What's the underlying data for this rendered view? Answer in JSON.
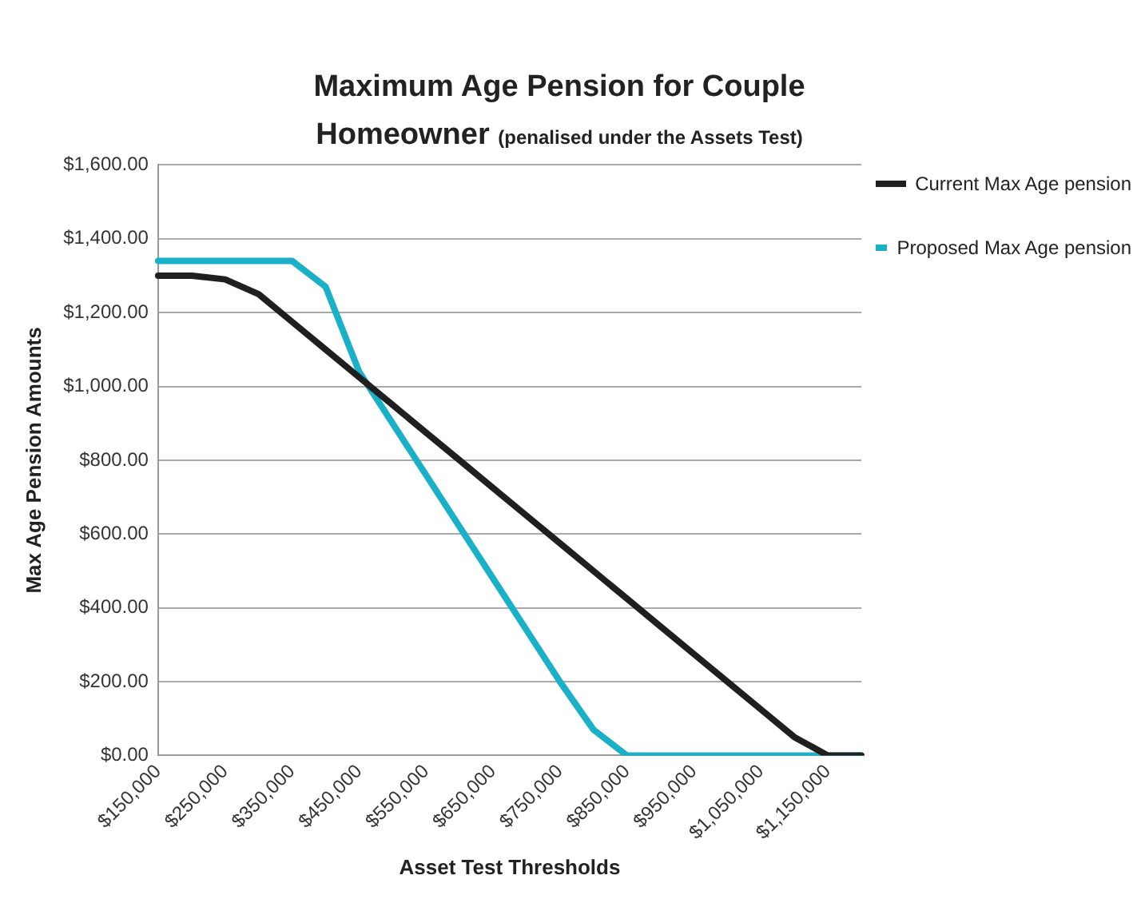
{
  "chart_data": {
    "type": "line",
    "title": "Maximum Age Pension for Couple Homeowner",
    "subtitle": "(penalised under the Assets Test)",
    "xlabel": "Asset Test Thresholds",
    "ylabel": "Max Age Pension Amounts",
    "categories": [
      "$150,000",
      null,
      "$250,000",
      null,
      "$350,000",
      null,
      "$450,000",
      null,
      "$550,000",
      null,
      "$650,000",
      null,
      "$750,000",
      null,
      "$850,000",
      null,
      "$950,000",
      null,
      "$1,050,000",
      null,
      "$1,150,000",
      null
    ],
    "series": [
      {
        "name": "Current Max Age pension",
        "color": "#1f1f1f",
        "values": [
          1300,
          1300,
          1290,
          1250,
          1175,
          1100,
          1025,
          950,
          875,
          800,
          725,
          650,
          575,
          500,
          425,
          350,
          275,
          200,
          125,
          50,
          0,
          0
        ]
      },
      {
        "name": "Proposed Max Age pension",
        "color": "#1ab0c8",
        "values": [
          1340,
          1340,
          1340,
          1340,
          1340,
          1270,
          1040,
          900,
          760,
          620,
          480,
          340,
          200,
          70,
          0,
          0,
          0,
          0,
          0,
          0,
          0,
          0
        ]
      }
    ],
    "ylim": [
      0,
      1600
    ],
    "yticks": [
      {
        "value": 0,
        "label": "$0.00"
      },
      {
        "value": 200,
        "label": "$200.00"
      },
      {
        "value": 400,
        "label": "$400.00"
      },
      {
        "value": 600,
        "label": "$600.00"
      },
      {
        "value": 800,
        "label": "$800.00"
      },
      {
        "value": 1000,
        "label": "$1,000.00"
      },
      {
        "value": 1200,
        "label": "$1,200.00"
      },
      {
        "value": 1400,
        "label": "$1,400.00"
      },
      {
        "value": 1600,
        "label": "$1,600.00"
      }
    ],
    "grid": "y",
    "legend": "right",
    "marker": "none",
    "line_style": "solid"
  }
}
